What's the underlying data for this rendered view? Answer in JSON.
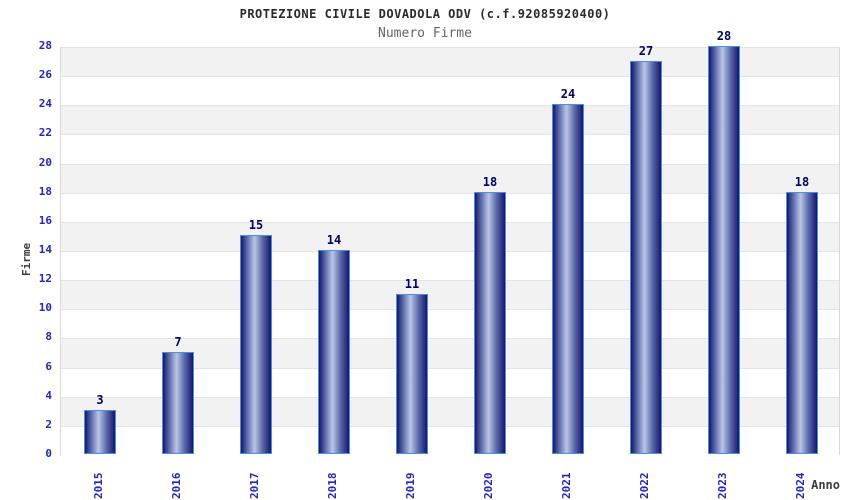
{
  "chart_data": {
    "type": "bar",
    "title": "PROTEZIONE CIVILE DOVADOLA ODV (c.f.92085920400)",
    "subtitle": "Numero Firme",
    "categories": [
      "2015",
      "2016",
      "2017",
      "2018",
      "2019",
      "2020",
      "2021",
      "2022",
      "2023",
      "2024"
    ],
    "values": [
      3,
      7,
      15,
      14,
      11,
      18,
      24,
      27,
      28,
      18
    ],
    "xlabel": "Anno",
    "ylabel": "Firme",
    "ylim": [
      0,
      28
    ],
    "ytick_step": 2,
    "grid": true,
    "legend": "none",
    "styles": {
      "band_color_a": "#f2f2f2",
      "band_color_b": "#ffffff",
      "gridline_color": "#e4e4e4",
      "bar_border_color": "#4a90e0",
      "bar_gradient_edge": "#15156e",
      "bar_gradient_mid": "#5a68a8",
      "bar_gradient_center": "#bac5e5",
      "value_label_color": "#000066",
      "tick_label_color": "#2323cd",
      "axis_title_color": "#3d3d3d",
      "title_color": "#2a2a2a",
      "subtitle_color": "#666666"
    }
  }
}
